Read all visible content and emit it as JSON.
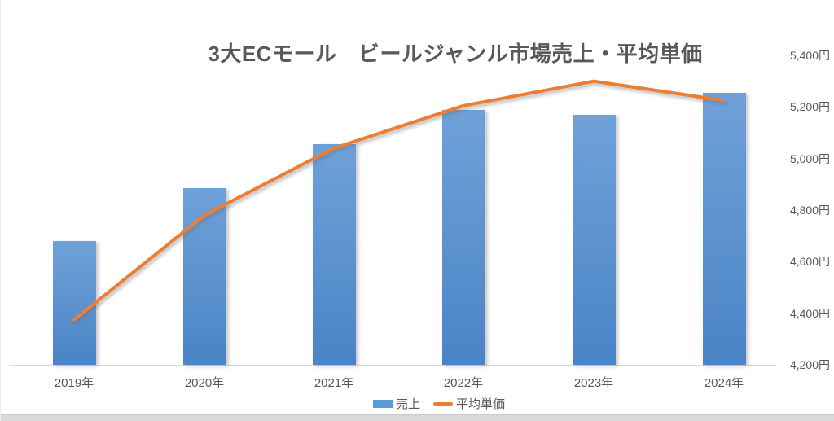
{
  "chart_data": {
    "type": "bar",
    "subtype": "combo-bar-line",
    "title": "3大ECモール　ビールジャンル市場売上・平均単価",
    "categories": [
      "2019年",
      "2020年",
      "2021年",
      "2022年",
      "2023年",
      "2024年"
    ],
    "series": [
      {
        "name": "売上",
        "type": "bar",
        "axis": "hidden",
        "values_on_displayed_scale": [
          4680,
          4885,
          5055,
          5190,
          5170,
          5255
        ]
      },
      {
        "name": "平均単価",
        "type": "line",
        "axis": "right",
        "unit": "円",
        "values": [
          4375,
          4780,
          5040,
          5205,
          5300,
          5225
        ]
      }
    ],
    "right_axis": {
      "min": 4200,
      "max": 5400,
      "step": 200,
      "tick_labels": [
        "5,400円",
        "5,200円",
        "5,000円",
        "4,800円",
        "4,600円",
        "4,400円",
        "4,200円"
      ]
    },
    "grid": false,
    "legend": {
      "position": "bottom",
      "entries": [
        "売上",
        "平均単価"
      ]
    },
    "colors": {
      "bar_gradient_top": "#6FA1D9",
      "bar_gradient_bottom": "#4A84C6",
      "bar_legend": "#5B9BD5",
      "line": "#ED7D31",
      "text": "#595959",
      "axis_line": "#D9D9D9",
      "bottom_strip": "#D9D9D9"
    }
  }
}
